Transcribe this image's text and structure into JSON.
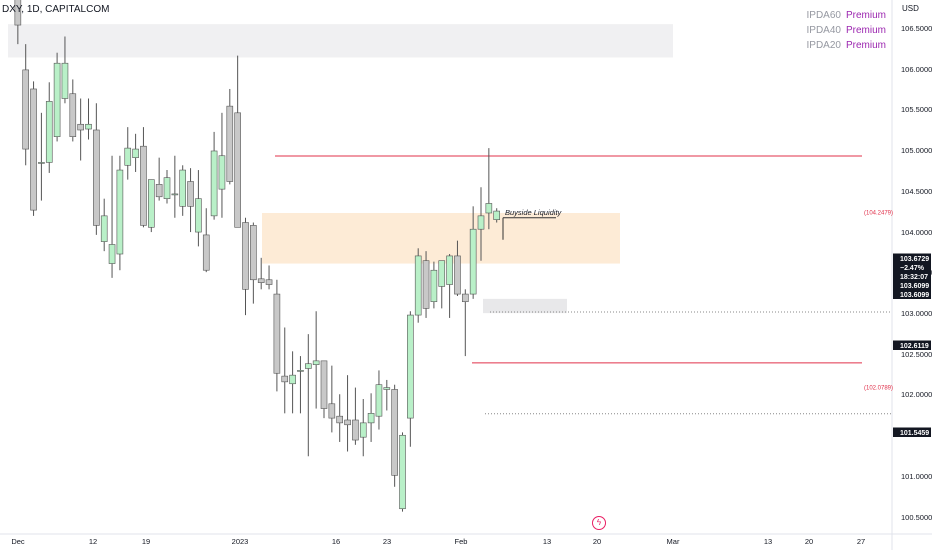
{
  "header": {
    "title": "DXY, 1D, CAPITALCOM",
    "currency": "USD"
  },
  "legend": [
    {
      "name": "IPDA60",
      "value": "Premium"
    },
    {
      "name": "IPDA40",
      "value": "Premium"
    },
    {
      "name": "IPDA20",
      "value": "Premium"
    }
  ],
  "colors": {
    "up_body": "#b9f0c8",
    "down_body": "#c8c8c8",
    "wick": "#555555",
    "red_line": "#e0304a",
    "premium_zone": "#f0f0f2",
    "orange_zone": "#fdebd6",
    "discount_zone": "#e8e8ea",
    "accent": "#9c27b0"
  },
  "chart_data": {
    "type": "candlestick",
    "x_tick_labels": [
      "Dec",
      "12",
      "19",
      "2023",
      "16",
      "23",
      "Feb",
      "13",
      "20",
      "Mar",
      "13",
      "20",
      "27"
    ],
    "y_tick_labels": [
      "106.5000",
      "106.0000",
      "105.5000",
      "105.0000",
      "104.5000",
      "104.0000",
      "103.5000",
      "103.0000",
      "102.5000",
      "102.0000",
      "101.0000",
      "100.5000"
    ],
    "ylim": [
      100.45,
      106.75
    ],
    "price_labels": [
      {
        "text": "103.6729",
        "style": "dark"
      },
      {
        "text": "−2.47%",
        "style": "dark"
      },
      {
        "text": "18:32:07",
        "style": "dark"
      },
      {
        "text": "103.6099",
        "style": "dark"
      },
      {
        "text": "103.6099",
        "style": "dark"
      },
      {
        "text": "102.6119",
        "style": "dark"
      },
      {
        "text": "101.5459",
        "style": "dark"
      },
      {
        "text": "(104.2479)",
        "style": "red"
      },
      {
        "text": "(102.0789)",
        "style": "red"
      }
    ],
    "levels": [
      {
        "value": 104.2479,
        "label": "(104.2479)",
        "style": "red"
      },
      {
        "value": 102.0789,
        "label": "(102.0789)",
        "style": "red"
      },
      {
        "value": 102.6119,
        "style": "dotted"
      },
      {
        "value": 101.5459,
        "style": "dotted"
      }
    ],
    "zones": [
      {
        "name": "premium",
        "from": 105.28,
        "to": 105.63
      },
      {
        "name": "orange",
        "from": 103.12,
        "to": 103.65
      },
      {
        "name": "discount",
        "from": 102.6,
        "to": 102.75
      }
    ],
    "annotations": [
      {
        "text": "Buyside Liquidity",
        "value": 103.6
      }
    ],
    "candles": [
      {
        "o": 106.3,
        "h": 106.62,
        "l": 106.2,
        "c": 106.43
      },
      {
        "o": 106.4,
        "h": 106.52,
        "l": 105.42,
        "c": 105.62
      },
      {
        "o": 105.15,
        "h": 105.42,
        "l": 104.15,
        "c": 104.32
      },
      {
        "o": 104.95,
        "h": 105.03,
        "l": 103.62,
        "c": 103.68
      },
      {
        "o": 104.18,
        "h": 104.7,
        "l": 103.78,
        "c": 104.18
      },
      {
        "o": 104.18,
        "h": 105.02,
        "l": 104.07,
        "c": 104.82
      },
      {
        "o": 104.45,
        "h": 105.33,
        "l": 104.4,
        "c": 105.22
      },
      {
        "o": 104.85,
        "h": 105.5,
        "l": 104.8,
        "c": 105.22
      },
      {
        "o": 104.9,
        "h": 105.05,
        "l": 104.4,
        "c": 104.45
      },
      {
        "o": 104.58,
        "h": 104.85,
        "l": 104.2,
        "c": 104.52
      },
      {
        "o": 104.53,
        "h": 104.85,
        "l": 104.42,
        "c": 104.58
      },
      {
        "o": 104.52,
        "h": 104.8,
        "l": 103.42,
        "c": 103.52
      },
      {
        "o": 103.35,
        "h": 103.8,
        "l": 103.25,
        "c": 103.62
      },
      {
        "o": 103.12,
        "h": 104.25,
        "l": 102.97,
        "c": 103.32
      },
      {
        "o": 103.22,
        "h": 104.25,
        "l": 103.05,
        "c": 104.1
      },
      {
        "o": 104.15,
        "h": 104.55,
        "l": 104.0,
        "c": 104.33
      },
      {
        "o": 104.23,
        "h": 104.48,
        "l": 104.08,
        "c": 104.32
      },
      {
        "o": 104.35,
        "h": 104.55,
        "l": 103.5,
        "c": 103.52
      },
      {
        "o": 103.5,
        "h": 104.0,
        "l": 103.45,
        "c": 104.0
      },
      {
        "o": 103.95,
        "h": 104.23,
        "l": 103.78,
        "c": 103.82
      },
      {
        "o": 103.8,
        "h": 104.1,
        "l": 103.75,
        "c": 104.02
      },
      {
        "o": 103.85,
        "h": 104.25,
        "l": 103.6,
        "c": 103.85
      },
      {
        "o": 103.72,
        "h": 104.15,
        "l": 103.62,
        "c": 104.1
      },
      {
        "o": 103.98,
        "h": 104.12,
        "l": 103.45,
        "c": 103.72
      },
      {
        "o": 103.45,
        "h": 104.1,
        "l": 103.3,
        "c": 103.8
      },
      {
        "o": 103.42,
        "h": 103.7,
        "l": 103.03,
        "c": 103.05
      },
      {
        "o": 103.62,
        "h": 104.5,
        "l": 103.58,
        "c": 104.3
      },
      {
        "o": 103.9,
        "h": 104.7,
        "l": 103.6,
        "c": 104.25
      },
      {
        "o": 104.77,
        "h": 104.95,
        "l": 103.95,
        "c": 103.98
      },
      {
        "o": 104.7,
        "h": 105.3,
        "l": 103.5,
        "c": 103.5
      },
      {
        "o": 103.55,
        "h": 103.6,
        "l": 102.58,
        "c": 102.85
      },
      {
        "o": 103.52,
        "h": 103.55,
        "l": 102.7,
        "c": 102.95
      },
      {
        "o": 102.96,
        "h": 103.18,
        "l": 102.85,
        "c": 102.92
      },
      {
        "o": 102.95,
        "h": 103.1,
        "l": 102.85,
        "c": 102.9
      },
      {
        "o": 102.8,
        "h": 102.95,
        "l": 101.78,
        "c": 101.97
      },
      {
        "o": 101.94,
        "h": 102.45,
        "l": 101.55,
        "c": 101.88
      },
      {
        "o": 101.86,
        "h": 102.2,
        "l": 101.55,
        "c": 101.95
      },
      {
        "o": 102.0,
        "h": 102.15,
        "l": 101.55,
        "c": 102.0
      },
      {
        "o": 102.02,
        "h": 102.38,
        "l": 101.1,
        "c": 102.07
      },
      {
        "o": 102.06,
        "h": 102.62,
        "l": 101.6,
        "c": 102.1
      },
      {
        "o": 102.1,
        "h": 102.1,
        "l": 101.5,
        "c": 101.6
      },
      {
        "o": 101.65,
        "h": 102.05,
        "l": 101.35,
        "c": 101.5
      },
      {
        "o": 101.52,
        "h": 101.75,
        "l": 101.25,
        "c": 101.45
      },
      {
        "o": 101.48,
        "h": 101.95,
        "l": 101.15,
        "c": 101.43
      },
      {
        "o": 101.48,
        "h": 101.82,
        "l": 101.22,
        "c": 101.27
      },
      {
        "o": 101.3,
        "h": 101.7,
        "l": 101.1,
        "c": 101.45
      },
      {
        "o": 101.45,
        "h": 101.76,
        "l": 101.25,
        "c": 101.55
      },
      {
        "o": 101.52,
        "h": 102.0,
        "l": 101.38,
        "c": 101.85
      },
      {
        "o": 101.8,
        "h": 101.9,
        "l": 101.58,
        "c": 101.82
      },
      {
        "o": 101.8,
        "h": 101.85,
        "l": 100.78,
        "c": 100.9
      },
      {
        "o": 100.55,
        "h": 101.35,
        "l": 100.52,
        "c": 101.32
      },
      {
        "o": 101.5,
        "h": 102.62,
        "l": 101.2,
        "c": 102.58
      },
      {
        "o": 102.58,
        "h": 103.28,
        "l": 102.5,
        "c": 103.2
      },
      {
        "o": 103.15,
        "h": 103.25,
        "l": 102.55,
        "c": 102.65
      },
      {
        "o": 102.72,
        "h": 103.14,
        "l": 102.65,
        "c": 103.05
      },
      {
        "o": 102.88,
        "h": 103.14,
        "l": 102.65,
        "c": 103.15
      },
      {
        "o": 102.9,
        "h": 103.22,
        "l": 102.55,
        "c": 103.2
      },
      {
        "o": 103.2,
        "h": 103.36,
        "l": 102.78,
        "c": 102.8
      },
      {
        "o": 102.8,
        "h": 102.85,
        "l": 102.15,
        "c": 102.72
      },
      {
        "o": 102.8,
        "h": 103.72,
        "l": 102.75,
        "c": 103.48
      },
      {
        "o": 103.48,
        "h": 103.92,
        "l": 103.15,
        "c": 103.62
      },
      {
        "o": 103.65,
        "h": 104.33,
        "l": 103.48,
        "c": 103.75
      },
      {
        "o": 103.58,
        "h": 103.7,
        "l": 103.55,
        "c": 103.67
      }
    ]
  }
}
